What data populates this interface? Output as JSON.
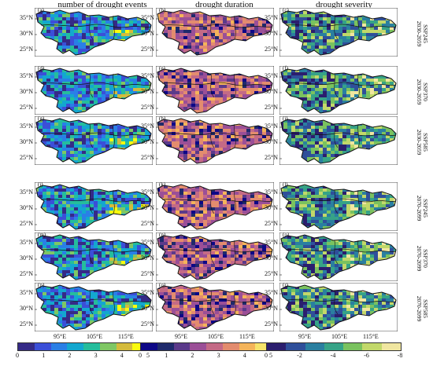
{
  "columns": [
    {
      "title": "number of drought events"
    },
    {
      "title": "drought duration"
    },
    {
      "title": "drought severity"
    }
  ],
  "rows": [
    {
      "scenario": "SSP245",
      "period": "2030-2059",
      "labels": [
        "(a)",
        "(b)",
        "(c)"
      ]
    },
    {
      "scenario": "SSP370",
      "period": "2030-2059",
      "labels": [
        "(d)",
        "(e)",
        "(f)"
      ]
    },
    {
      "scenario": "SSP585",
      "period": "2030-2059",
      "labels": [
        "(g)",
        "(h)",
        "(i)"
      ]
    },
    {
      "scenario": "SSP245",
      "period": "2070-2099",
      "labels": [
        "(j)",
        "(k)",
        "(l)"
      ]
    },
    {
      "scenario": "SSP370",
      "period": "2070-2099",
      "labels": [
        "(m)",
        "(n)",
        "(o)"
      ]
    },
    {
      "scenario": "SSP585",
      "period": "2070-2099",
      "labels": [
        "(p)",
        "(q)",
        "(r)"
      ]
    }
  ],
  "lat_labels": [
    "35°N",
    "30°N",
    "25°N"
  ],
  "lon_labels": [
    "95°E",
    "105°E",
    "115°E"
  ],
  "colorbars": [
    {
      "ticks": [
        "0",
        "1",
        "2",
        "3",
        "4",
        "5"
      ],
      "colors": [
        "#352a87",
        "#3b4fd8",
        "#2a7fe6",
        "#13a7cf",
        "#25bd9c",
        "#7fc764",
        "#d4bb3c",
        "#f9fb0e"
      ]
    },
    {
      "ticks": [
        "0",
        "1",
        "2",
        "3",
        "4",
        "5"
      ],
      "colors": [
        "#0d0887",
        "#1f2a6b",
        "#5b3a8a",
        "#9b4f97",
        "#c46a86",
        "#e38c6e",
        "#f4b45a",
        "#f5e36a"
      ]
    },
    {
      "ticks": [
        "0",
        "-2",
        "-4",
        "-6",
        "-8"
      ],
      "colors": [
        "#2b1e6e",
        "#2f4f9a",
        "#2a7fa0",
        "#36a387",
        "#7ac25f",
        "#c2d86a",
        "#f0e6a0"
      ]
    }
  ]
}
